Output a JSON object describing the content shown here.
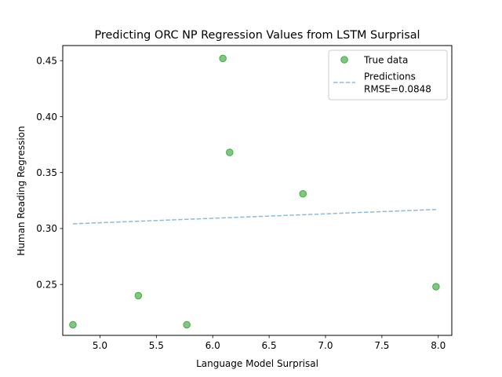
{
  "chart_data": {
    "type": "scatter",
    "title": "Predicting ORC NP Regression Values from LSTM Surprisal",
    "xlabel": "Language Model Surprisal",
    "ylabel": "Human Reading Regression",
    "xlim": [
      4.67,
      8.12
    ],
    "ylim": [
      0.2045,
      0.4635
    ],
    "x_ticks": [
      5.0,
      5.5,
      6.0,
      6.5,
      7.0,
      7.5,
      8.0
    ],
    "y_ticks": [
      0.25,
      0.3,
      0.35,
      0.4,
      0.45
    ],
    "x_tick_labels": [
      "5.0",
      "5.5",
      "6.0",
      "6.5",
      "7.0",
      "7.5",
      "8.0"
    ],
    "y_tick_labels": [
      "0.25",
      "0.30",
      "0.35",
      "0.40",
      "0.45"
    ],
    "grid": false,
    "legend_position": "top-right",
    "series": [
      {
        "name": "True data",
        "kind": "scatter",
        "color": "#2ca02c",
        "points": [
          {
            "x": 4.76,
            "y": 0.214
          },
          {
            "x": 5.34,
            "y": 0.24
          },
          {
            "x": 5.77,
            "y": 0.214
          },
          {
            "x": 6.09,
            "y": 0.452
          },
          {
            "x": 6.15,
            "y": 0.368
          },
          {
            "x": 6.8,
            "y": 0.331
          },
          {
            "x": 7.98,
            "y": 0.248
          }
        ]
      },
      {
        "name": "Predictions",
        "kind": "line",
        "style": "dashed",
        "color": "#1f77b4",
        "points": [
          {
            "x": 4.76,
            "y": 0.3042
          },
          {
            "x": 7.98,
            "y": 0.317
          }
        ]
      }
    ],
    "legend": {
      "entries": [
        "True data",
        "Predictions"
      ],
      "rmse_label": "RMSE=0.0848"
    }
  }
}
